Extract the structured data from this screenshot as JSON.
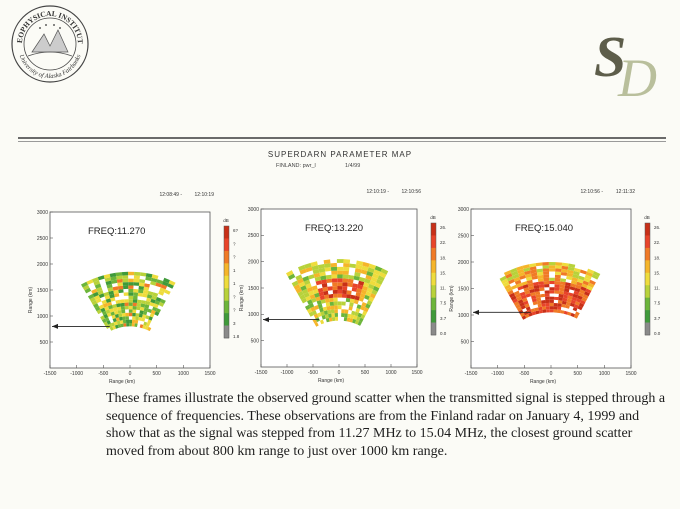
{
  "header": {
    "logo_text_top": "GEOPHYSICAL INSTITUTE",
    "logo_text_bottom": "University of Alaska Fairbanks",
    "monogram": "SD"
  },
  "map": {
    "title": "SUPERDARN PARAMETER MAP",
    "station": "FINLAND: pwr_l",
    "date": "1/4/99"
  },
  "chart_data": [
    {
      "type": "heatmap",
      "title": "FREQ:11.270",
      "time_start": "12:08:49 -",
      "time_end": "12:10:19",
      "xlabel": "Range (km)",
      "ylabel": "Range (km)",
      "xlim": [
        -1500,
        1500
      ],
      "ylim": [
        0,
        3000
      ],
      "xticks": [
        "-1500",
        "-1000",
        "-500",
        "0",
        "500",
        "1000",
        "1500"
      ],
      "yticks": [
        "500",
        "1000",
        "1500",
        "2000",
        "2500",
        "3000"
      ],
      "colorbar_unit": "dB",
      "colorbar_labels": [
        "6?",
        "?",
        "?",
        "1",
        "1",
        "?",
        "?",
        "3",
        "1.8"
      ],
      "arrow_range_km": 800,
      "scatter": {
        "rmin": 800,
        "rmax": 1850
      }
    },
    {
      "type": "heatmap",
      "title": "FREQ:13.220",
      "time_start": "12:10:19 -",
      "time_end": "12:10:56",
      "xlabel": "Range (km)",
      "ylabel": "Range (km)",
      "xlim": [
        -1500,
        1500
      ],
      "ylim": [
        0,
        3000
      ],
      "xticks": [
        "-1500",
        "-1000",
        "-500",
        "0",
        "500",
        "1000",
        "1500"
      ],
      "yticks": [
        "500",
        "1000",
        "1500",
        "2000",
        "2500",
        "3000"
      ],
      "colorbar_unit": "dB",
      "colorbar_labels": [
        "26.",
        "22.",
        "18.",
        "15.",
        "11.",
        "7.5",
        "3.7",
        "0.0"
      ],
      "arrow_range_km": 900,
      "scatter": {
        "rmin": 880,
        "rmax": 2050
      }
    },
    {
      "type": "heatmap",
      "title": "FREQ:15.040",
      "time_start": "12:10:56 -",
      "time_end": "12:11:32",
      "xlabel": "Range (km)",
      "ylabel": "Range (km)",
      "xlim": [
        -1500,
        1500
      ],
      "ylim": [
        0,
        3000
      ],
      "xticks": [
        "-1500",
        "-1000",
        "-500",
        "0",
        "500",
        "1000",
        "1500"
      ],
      "yticks": [
        "500",
        "1000",
        "1500",
        "2000",
        "2500",
        "3000"
      ],
      "colorbar_unit": "dB",
      "colorbar_labels": [
        "26.",
        "22.",
        "18.",
        "15.",
        "11.",
        "7.5",
        "3.7",
        "0.0"
      ],
      "arrow_range_km": 1050,
      "scatter": {
        "rmin": 1050,
        "rmax": 2000
      }
    }
  ],
  "colors": {
    "scale": [
      "#c83018",
      "#e8442a",
      "#f07a26",
      "#f5b52a",
      "#eedc3c",
      "#b8d23a",
      "#6cb53a",
      "#3f9a3a",
      "#8a8a8a"
    ]
  },
  "caption": "These frames illustrate the observed ground scatter when the transmitted signal is stepped through a sequence of frequencies. These observations are from the Finland radar on January 4, 1999 and show that as  the signal was stepped from 11.27 MHz to 15.04 MHz, the closest ground scatter moved from about 800 km range to just over 1000 km range."
}
